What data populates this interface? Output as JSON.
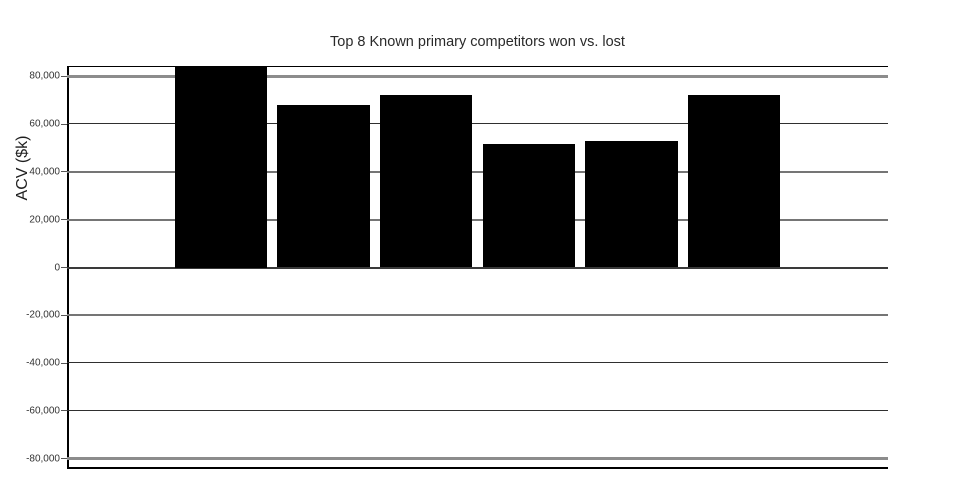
{
  "chart_data": {
    "type": "bar",
    "title": "Top 8 Known primary competitors won vs. lost",
    "xlabel": "",
    "ylabel": "ACV ($k)",
    "categories": [
      "",
      "",
      "",
      "",
      "",
      "",
      "",
      ""
    ],
    "values": [
      0,
      84300,
      67800,
      72000,
      51500,
      53000,
      72000,
      0
    ],
    "ylim": [
      -84300,
      84300
    ],
    "yticks": [
      {
        "value": 80000,
        "label": "80,000"
      },
      {
        "value": 60000,
        "label": "60,000"
      },
      {
        "value": 40000,
        "label": "40,000"
      },
      {
        "value": 20000,
        "label": "20,000"
      },
      {
        "value": 0,
        "label": "0"
      },
      {
        "value": -20000,
        "label": "-20,000"
      },
      {
        "value": -40000,
        "label": "-40,000"
      },
      {
        "value": -60000,
        "label": "-60,000"
      },
      {
        "value": -80000,
        "label": "-80,000"
      }
    ],
    "x_tick_labels": [],
    "bar_color": "#000000",
    "background_color": "#ffffff",
    "grid": true,
    "legend": false,
    "bar_gap_fraction": 0.1
  }
}
